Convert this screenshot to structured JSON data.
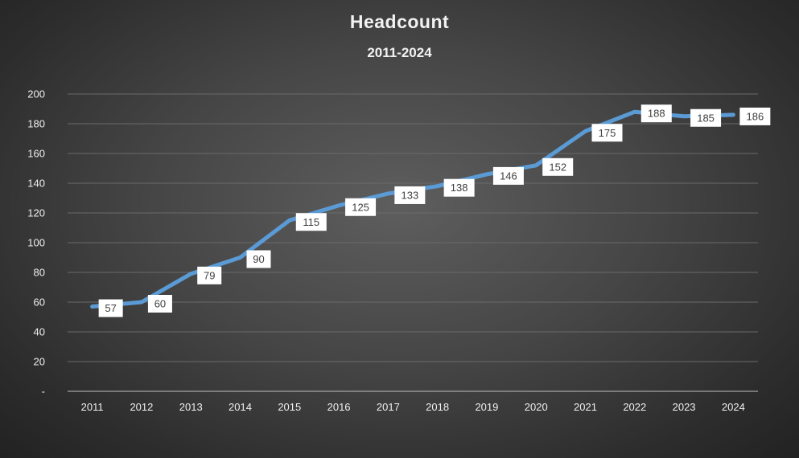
{
  "chart_data": {
    "type": "line",
    "title": "Headcount",
    "subtitle": "2011-2024",
    "xlabel": "",
    "ylabel": "",
    "categories": [
      "2011",
      "2012",
      "2013",
      "2014",
      "2015",
      "2016",
      "2017",
      "2018",
      "2019",
      "2020",
      "2021",
      "2022",
      "2023",
      "2024"
    ],
    "series": [
      {
        "values": [
          57,
          60,
          79,
          90,
          115,
          125,
          133,
          138,
          146,
          152,
          175,
          188,
          185,
          186
        ]
      }
    ],
    "y_ticks": [
      "-",
      "20",
      "40",
      "60",
      "80",
      "100",
      "120",
      "140",
      "160",
      "180",
      "200"
    ],
    "ylim": [
      0,
      200
    ],
    "grid": true,
    "legend": "none",
    "data_labels": true,
    "colors": {
      "line": "#5b9bd5",
      "grid": "#6a6a6a",
      "axis": "#bfbfbf",
      "label_box": "#ffffff"
    }
  }
}
